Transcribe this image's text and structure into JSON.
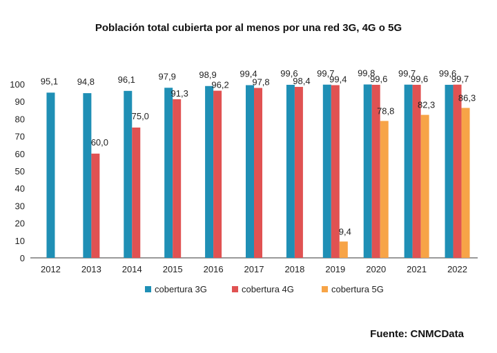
{
  "chart_data": {
    "type": "bar",
    "title": "Población total cubierta por al menos por una red 3G, 4G o 5G",
    "xlabel": "",
    "ylabel": "",
    "ylim": [
      0,
      100
    ],
    "yticks": [
      0,
      10,
      20,
      30,
      40,
      50,
      60,
      70,
      80,
      90,
      100
    ],
    "grid": false,
    "legend_position": "bottom",
    "categories": [
      "2012",
      "2013",
      "2014",
      "2015",
      "2016",
      "2017",
      "2018",
      "2019",
      "2020",
      "2021",
      "2022"
    ],
    "series": [
      {
        "name": "cobertura 3G",
        "color": "#1f8fb5",
        "values": [
          95.1,
          94.8,
          96.1,
          97.9,
          98.9,
          99.4,
          99.6,
          99.7,
          99.8,
          99.7,
          99.6
        ],
        "labels": [
          "95,1",
          "94,8",
          "96,1",
          "97,9",
          "98,9",
          "99,4",
          "99,6",
          "99,7",
          "99,8",
          "99,7",
          "99,6"
        ]
      },
      {
        "name": "cobertura 4G",
        "color": "#e05252",
        "values": [
          null,
          60.0,
          75.0,
          91.3,
          96.2,
          97.8,
          98.4,
          99.4,
          99.6,
          99.6,
          99.7
        ],
        "labels": [
          null,
          "60,0",
          "75,0",
          "91,3",
          "96,2",
          "97,8",
          "98,4",
          "99,4",
          "99,6",
          "99,6",
          "99,7"
        ]
      },
      {
        "name": "cobertura 5G",
        "color": "#f7a447",
        "values": [
          null,
          null,
          null,
          null,
          null,
          null,
          null,
          9.4,
          78.8,
          82.3,
          86.3
        ],
        "labels": [
          null,
          null,
          null,
          null,
          null,
          null,
          null,
          "9,4",
          "78,8",
          "82,3",
          "86,3"
        ]
      }
    ]
  },
  "source": "Fuente: CNMCData"
}
